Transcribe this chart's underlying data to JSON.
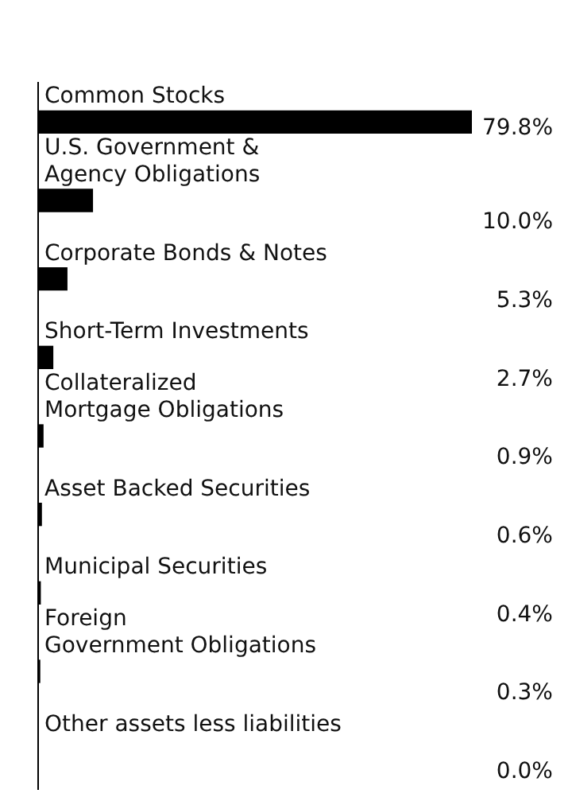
{
  "chart_data": {
    "type": "bar",
    "orientation": "horizontal",
    "color": "#000000",
    "categories": [
      "Common Stocks",
      "U.S. Government &\nAgency Obligations",
      "Corporate Bonds & Notes",
      "Short-Term Investments",
      "Collateralized\nMortgage Obligations",
      "Asset Backed Securities",
      "Municipal Securities",
      "Foreign\nGovernment Obligations",
      "Other assets less liabilities"
    ],
    "values": [
      79.8,
      10.0,
      5.3,
      2.7,
      0.9,
      0.6,
      0.4,
      0.3,
      0.0
    ],
    "value_labels": [
      "79.8%",
      "10.0%",
      "5.3%",
      "2.7%",
      "0.9%",
      "0.6%",
      "0.4%",
      "0.3%",
      "0.0%"
    ],
    "grid": false,
    "legend": false
  }
}
